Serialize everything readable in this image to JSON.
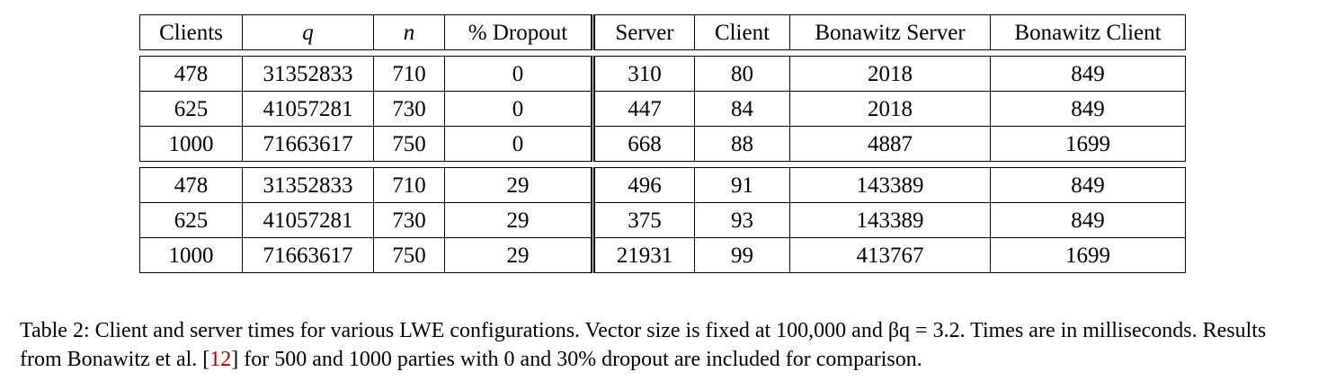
{
  "table": {
    "headers": [
      "Clients",
      "q",
      "n",
      "% Dropout",
      "Server",
      "Client",
      "Bonawitz Server",
      "Bonawitz Client"
    ],
    "groups": [
      [
        [
          "478",
          "31352833",
          "710",
          "0",
          "310",
          "80",
          "2018",
          "849"
        ],
        [
          "625",
          "41057281",
          "730",
          "0",
          "447",
          "84",
          "2018",
          "849"
        ],
        [
          "1000",
          "71663617",
          "750",
          "0",
          "668",
          "88",
          "4887",
          "1699"
        ]
      ],
      [
        [
          "478",
          "31352833",
          "710",
          "29",
          "496",
          "91",
          "143389",
          "849"
        ],
        [
          "625",
          "41057281",
          "730",
          "29",
          "375",
          "93",
          "143389",
          "849"
        ],
        [
          "1000",
          "71663617",
          "750",
          "29",
          "21931",
          "99",
          "413767",
          "1699"
        ]
      ]
    ]
  },
  "caption": {
    "label": "Table 2:",
    "text_before_ref": "Client and server times for various LWE configurations. Vector size is fixed at 100,000 and βq = 3.2. Times are in milliseconds. Results from Bonawitz et al. [",
    "ref": "12",
    "text_after_ref": "] for 500 and 1000 parties with 0 and 30% dropout are included for comparison."
  }
}
